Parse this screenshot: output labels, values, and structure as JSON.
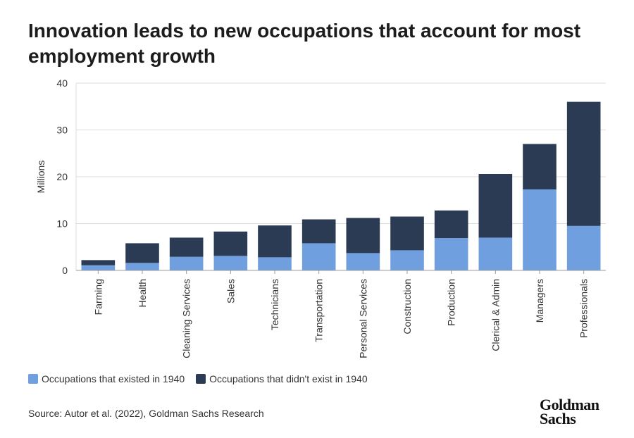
{
  "title": "Innovation leads to new occupations that account for most employment growth",
  "legend": {
    "existed_label": "Occupations that existed in 1940",
    "new_label": "Occupations that didn't exist in 1940"
  },
  "source": "Source: Autor et al. (2022), Goldman Sachs Research",
  "logo": {
    "line1": "Goldman",
    "line2": "Sachs"
  },
  "colors": {
    "existed": "#6f9fde",
    "new": "#2b3b54",
    "grid": "#dcdcdc",
    "axis": "#999999"
  },
  "chart_data": {
    "type": "bar",
    "stacked": true,
    "ylabel": "Millions",
    "ylim": [
      0,
      40
    ],
    "yticks": [
      0,
      10,
      20,
      30,
      40
    ],
    "grid": true,
    "legend_position": "bottom-left",
    "categories": [
      "Farming",
      "Health",
      "Cleaning Services",
      "Sales",
      "Technicians",
      "Transportation",
      "Personal Services",
      "Construction",
      "Production",
      "Clerical & Admin",
      "Managers",
      "Professionals"
    ],
    "series": [
      {
        "name": "Occupations that existed in 1940",
        "values": [
          1.1,
          1.6,
          2.9,
          3.1,
          2.8,
          5.8,
          3.7,
          4.3,
          6.9,
          7.0,
          17.3,
          9.5
        ]
      },
      {
        "name": "Occupations that didn't exist in 1940",
        "values": [
          1.1,
          4.2,
          4.1,
          5.2,
          6.8,
          5.1,
          7.5,
          7.2,
          5.9,
          13.6,
          9.7,
          26.5
        ]
      }
    ]
  }
}
